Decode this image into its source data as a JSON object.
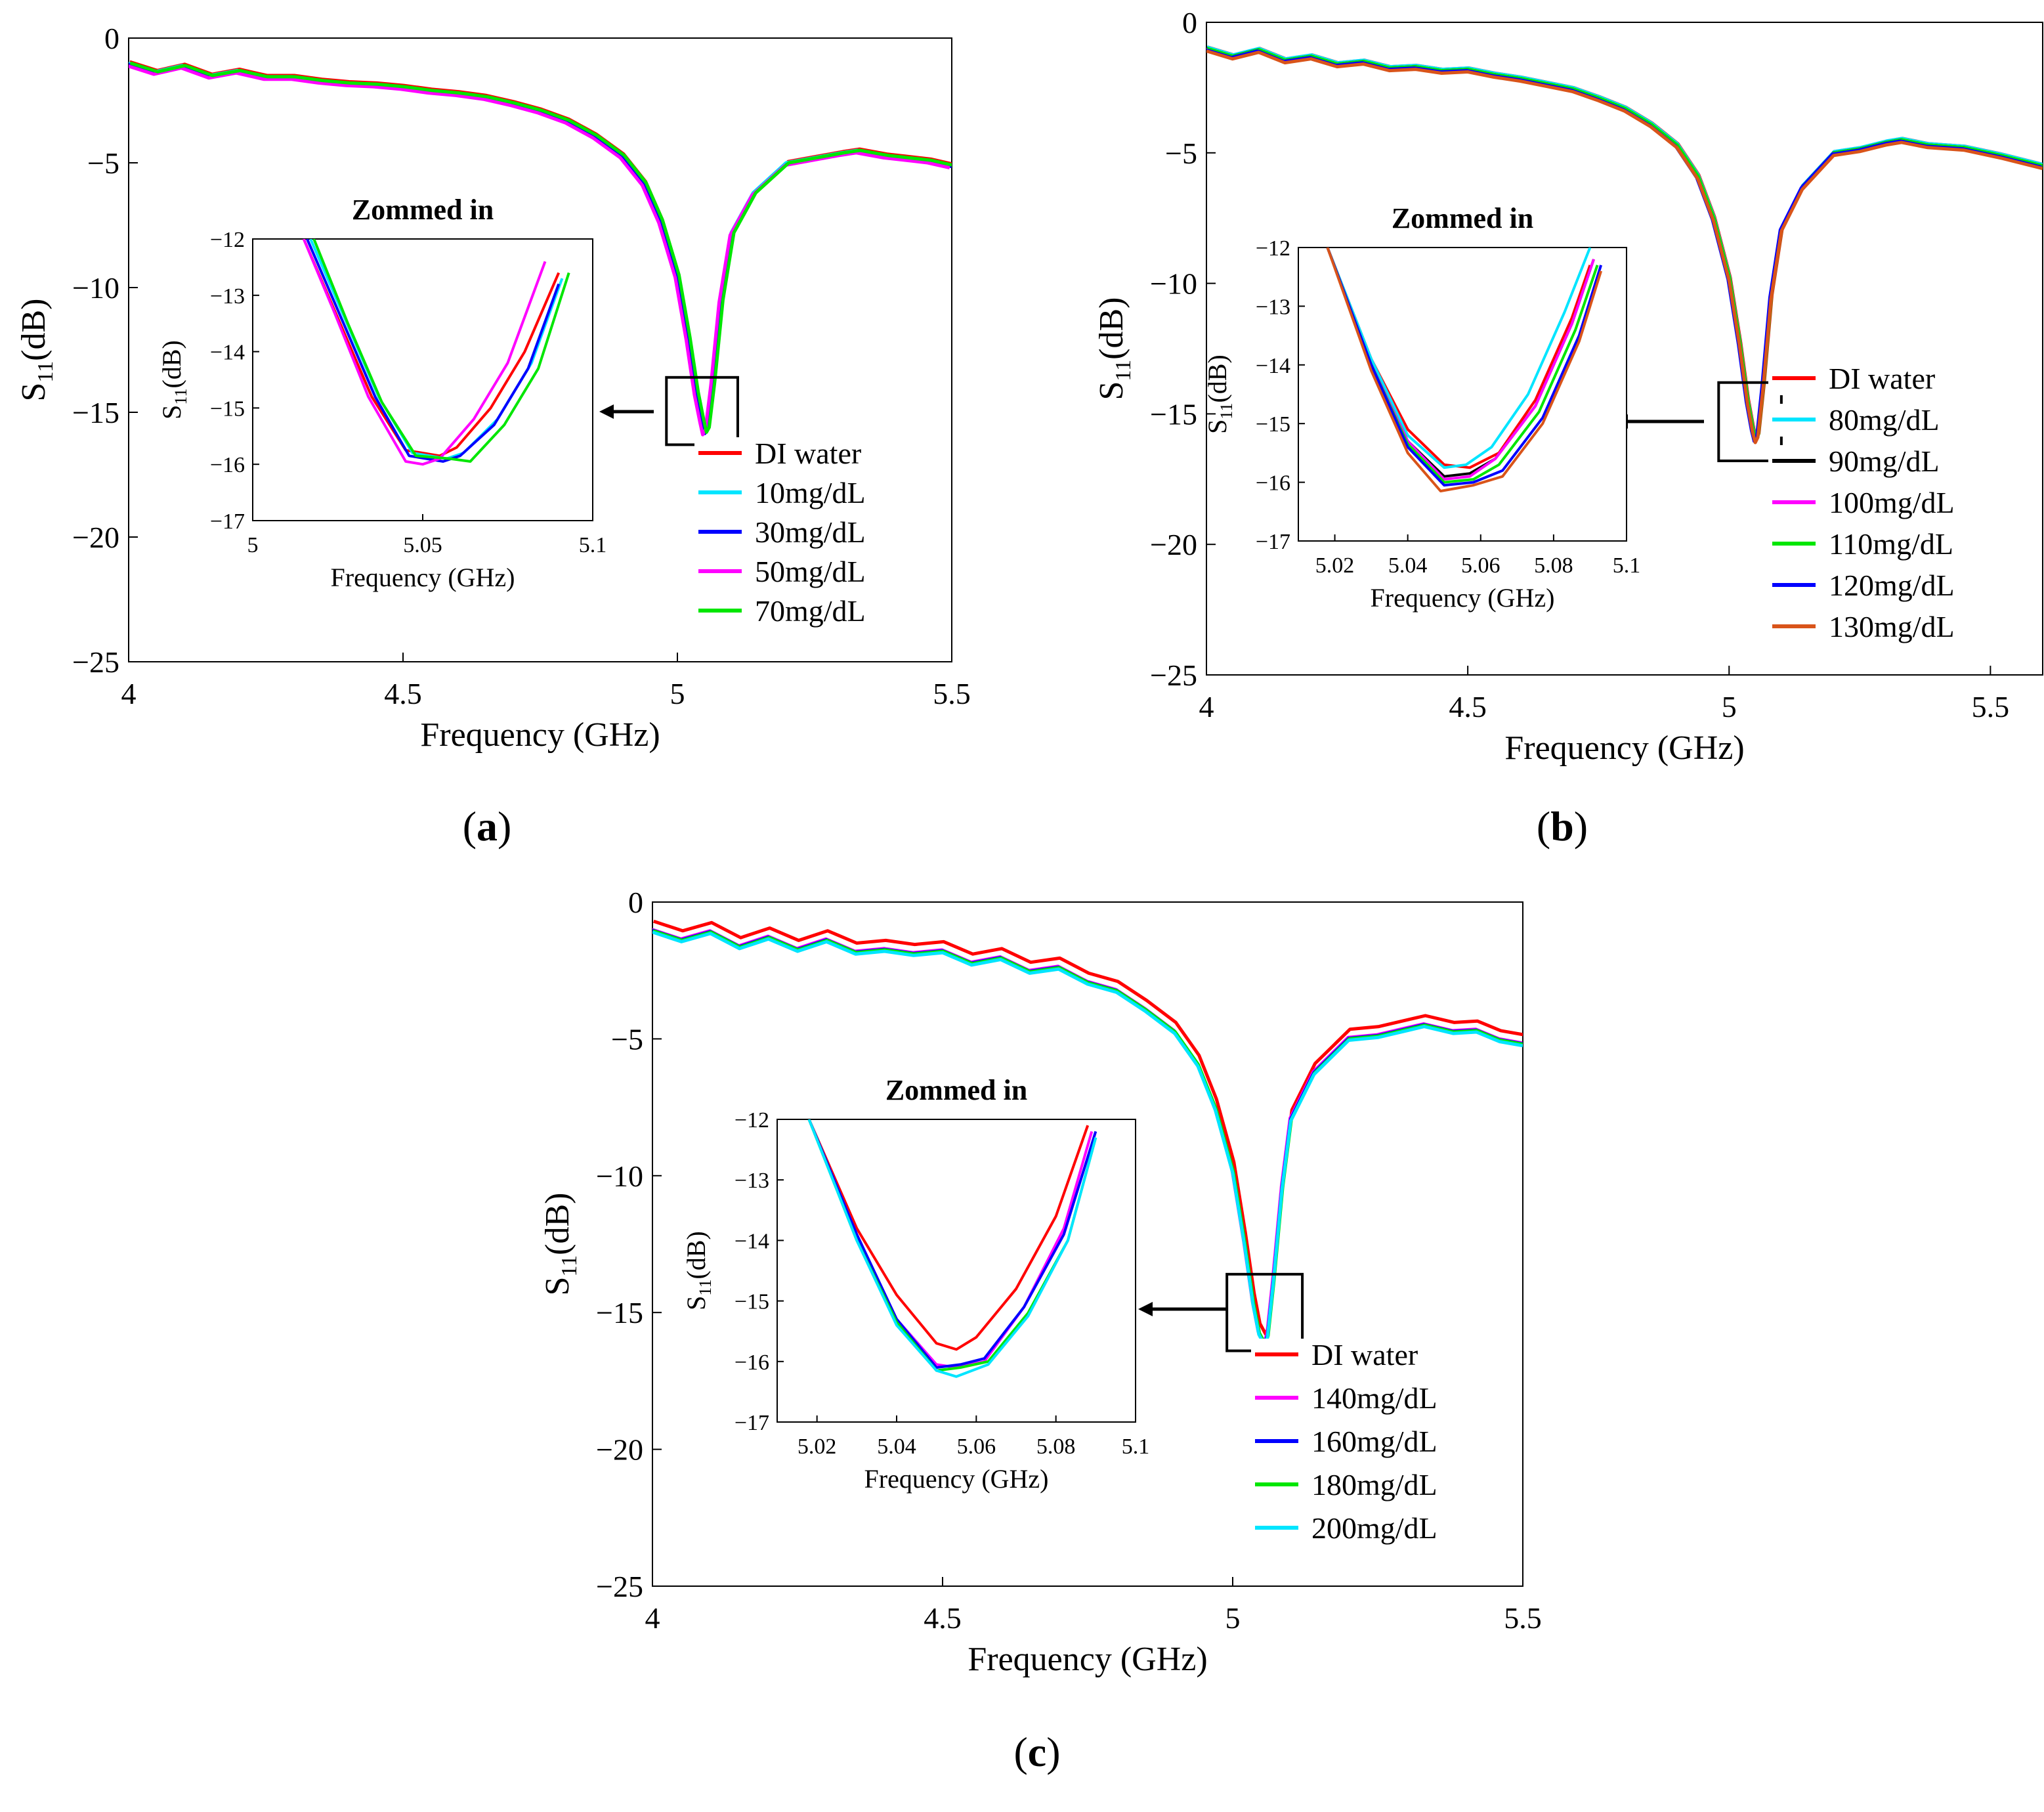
{
  "figure": {
    "panel_labels": [
      "(a)",
      "(b)",
      "(c)"
    ]
  },
  "colors": {
    "di_water": "#ff0000",
    "cyan": "#00e5ff",
    "black": "#000000",
    "magenta": "#ff00ff",
    "green": "#00e600",
    "blue": "#0000ff",
    "orange": "#d9541a"
  },
  "chart_data": [
    {
      "panel": "(a)",
      "type": "line",
      "xlabel": "Frequency (GHz)",
      "ylabel": "S11(dB)",
      "xlim": [
        4,
        5.5
      ],
      "ylim": [
        -25,
        0
      ],
      "xticks": [
        4,
        4.5,
        5,
        5.5
      ],
      "xtick_labels": [
        "4",
        "4.5",
        "5",
        "5.5"
      ],
      "yticks": [
        0,
        -5,
        -10,
        -15,
        -20,
        -25
      ],
      "ytick_labels": [
        "0",
        "-5",
        "-10",
        "-15",
        "-20",
        "-25"
      ],
      "zoom_box": {
        "x": [
          4.98,
          5.11
        ],
        "y": [
          -16.3,
          -13.6
        ]
      },
      "base_curve": {
        "x": [
          4.0,
          4.05,
          4.1,
          4.15,
          4.2,
          4.25,
          4.3,
          4.35,
          4.4,
          4.45,
          4.5,
          4.55,
          4.6,
          4.65,
          4.7,
          4.75,
          4.8,
          4.85,
          4.9,
          4.94,
          4.97,
          5.0,
          5.02,
          5.035,
          5.045,
          5.05,
          5.055,
          5.065,
          5.08,
          5.1,
          5.14,
          5.2,
          5.25,
          5.3,
          5.33,
          5.38,
          5.42,
          5.46,
          5.5
        ],
        "y": [
          -1.0,
          -1.35,
          -1.1,
          -1.5,
          -1.3,
          -1.55,
          -1.55,
          -1.7,
          -1.8,
          -1.85,
          -1.95,
          -2.1,
          -2.2,
          -2.35,
          -2.6,
          -2.9,
          -3.3,
          -3.9,
          -4.7,
          -5.8,
          -7.3,
          -9.5,
          -12.0,
          -14.2,
          -15.3,
          -15.8,
          -15.6,
          -13.8,
          -10.5,
          -7.8,
          -6.2,
          -5.0,
          -4.8,
          -4.6,
          -4.5,
          -4.7,
          -4.8,
          -4.9,
          -5.1
        ]
      },
      "series": [
        {
          "name": "DI water",
          "color": "#ff0000",
          "dx": 0.002,
          "dy": 0.05
        },
        {
          "name": "10mg/dL",
          "color": "#00e5ff",
          "dx": -0.002,
          "dy": 0.0
        },
        {
          "name": "30mg/dL",
          "color": "#0000ff",
          "dx": 0.0,
          "dy": -0.05
        },
        {
          "name": "50mg/dL",
          "color": "#ff00ff",
          "dx": -0.004,
          "dy": -0.1
        },
        {
          "name": "70mg/dL",
          "color": "#00e600",
          "dx": 0.003,
          "dy": 0.0
        }
      ],
      "inset": {
        "title": "Zommed in",
        "xlabel": "Frequency (GHz)",
        "ylabel": "S11(dB)",
        "xlim": [
          5.0,
          5.1
        ],
        "ylim": [
          -17,
          -12
        ],
        "xticks": [
          5.0,
          5.05,
          5.1
        ],
        "xtick_labels": [
          "5",
          "5.05",
          "5.1"
        ],
        "yticks": [
          -12,
          -13,
          -14,
          -15,
          -16,
          -17
        ],
        "ytick_labels": [
          "-12",
          "-13",
          "-14",
          "-15",
          "-16",
          "-17"
        ],
        "series": [
          {
            "name": "DI water",
            "x": [
              5.015,
              5.025,
              5.035,
              5.045,
              5.055,
              5.06,
              5.07,
              5.08,
              5.09
            ],
            "y": [
              -12.0,
              -13.4,
              -14.8,
              -15.75,
              -15.85,
              -15.7,
              -15.0,
              -14.0,
              -12.6
            ]
          },
          {
            "name": "10mg/dL",
            "x": [
              5.017,
              5.027,
              5.037,
              5.047,
              5.057,
              5.062,
              5.072,
              5.082,
              5.091
            ],
            "y": [
              -12.0,
              -13.4,
              -14.8,
              -15.8,
              -15.9,
              -15.8,
              -15.2,
              -14.2,
              -12.7
            ]
          },
          {
            "name": "30mg/dL",
            "x": [
              5.016,
              5.026,
              5.036,
              5.046,
              5.056,
              5.061,
              5.071,
              5.081,
              5.09
            ],
            "y": [
              -12.0,
              -13.4,
              -14.8,
              -15.85,
              -15.95,
              -15.85,
              -15.3,
              -14.3,
              -12.8
            ]
          },
          {
            "name": "50mg/dL",
            "x": [
              5.015,
              5.024,
              5.034,
              5.045,
              5.05,
              5.055,
              5.065,
              5.075,
              5.086
            ],
            "y": [
              -12.0,
              -13.3,
              -14.8,
              -15.95,
              -16.0,
              -15.9,
              -15.2,
              -14.2,
              -12.4
            ]
          },
          {
            "name": "70mg/dL",
            "x": [
              5.018,
              5.028,
              5.038,
              5.048,
              5.058,
              5.064,
              5.074,
              5.084,
              5.093
            ],
            "y": [
              -12.0,
              -13.5,
              -14.9,
              -15.85,
              -15.9,
              -15.95,
              -15.3,
              -14.3,
              -12.6
            ]
          }
        ]
      }
    },
    {
      "panel": "(b)",
      "type": "line",
      "xlabel": "Frequency (GHz)",
      "ylabel": "S11(dB)",
      "xlim": [
        4,
        5.6
      ],
      "ylim": [
        -25,
        0
      ],
      "xticks": [
        4,
        4.5,
        5,
        5.5
      ],
      "xtick_labels": [
        "4",
        "4.5",
        "5",
        "5.5"
      ],
      "yticks": [
        0,
        -5,
        -10,
        -15,
        -20,
        -25
      ],
      "ytick_labels": [
        "0",
        "-5",
        "-10",
        "-15",
        "-20",
        "-25"
      ],
      "zoom_box": {
        "x": [
          4.98,
          5.1
        ],
        "y": [
          -16.8,
          -13.8
        ]
      },
      "base_curve": {
        "x": [
          4.0,
          4.05,
          4.1,
          4.15,
          4.2,
          4.25,
          4.3,
          4.35,
          4.4,
          4.45,
          4.5,
          4.55,
          4.6,
          4.65,
          4.7,
          4.75,
          4.8,
          4.85,
          4.9,
          4.94,
          4.97,
          5.0,
          5.02,
          5.035,
          5.045,
          5.05,
          5.055,
          5.065,
          5.08,
          5.1,
          5.14,
          5.2,
          5.25,
          5.3,
          5.33,
          5.38,
          5.45,
          5.52,
          5.6
        ],
        "y": [
          -1.0,
          -1.3,
          -1.05,
          -1.45,
          -1.3,
          -1.6,
          -1.5,
          -1.75,
          -1.7,
          -1.85,
          -1.8,
          -2.0,
          -2.15,
          -2.35,
          -2.55,
          -2.9,
          -3.3,
          -3.9,
          -4.7,
          -5.9,
          -7.5,
          -9.8,
          -12.3,
          -14.5,
          -15.6,
          -16.0,
          -15.8,
          -13.9,
          -10.5,
          -7.9,
          -6.3,
          -5.0,
          -4.85,
          -4.6,
          -4.5,
          -4.7,
          -4.8,
          -5.1,
          -5.5
        ]
      },
      "series": [
        {
          "name": "DI water",
          "color": "#ff0000",
          "dx": 0.002,
          "dy": 0.05
        },
        {
          "name": "80mg/dL",
          "color": "#00e5ff",
          "dx": 0.001,
          "dy": 0.05
        },
        {
          "name": "90mg/dL",
          "color": "#000000",
          "dx": 0.0,
          "dy": 0.0
        },
        {
          "name": "100mg/dL",
          "color": "#ff00ff",
          "dx": -0.001,
          "dy": -0.03
        },
        {
          "name": "110mg/dL",
          "color": "#00e600",
          "dx": 0.001,
          "dy": 0.0
        },
        {
          "name": "120mg/dL",
          "color": "#0000ff",
          "dx": -0.002,
          "dy": -0.05
        },
        {
          "name": "130mg/dL",
          "color": "#d9541a",
          "dx": 0.0,
          "dy": -0.1
        }
      ],
      "inset": {
        "title": "Zommed in",
        "xlabel": "Frequency (GHz)",
        "ylabel": "S11(dB)",
        "xlim": [
          5.01,
          5.1
        ],
        "ylim": [
          -17,
          -12
        ],
        "xticks": [
          5.02,
          5.04,
          5.06,
          5.08,
          5.1
        ],
        "xtick_labels": [
          "5.02",
          "5.04",
          "5.06",
          "5.08",
          "5.1"
        ],
        "yticks": [
          -12,
          -13,
          -14,
          -15,
          -16,
          -17
        ],
        "ytick_labels": [
          "-12",
          "-13",
          "-14",
          "-15",
          "-16",
          "-17"
        ],
        "series": [
          {
            "name": "DI water",
            "x": [
              5.018,
              5.03,
              5.04,
              5.05,
              5.057,
              5.065,
              5.075,
              5.085,
              5.09
            ],
            "y": [
              -12.0,
              -13.9,
              -15.1,
              -15.7,
              -15.75,
              -15.5,
              -14.6,
              -13.2,
              -12.3
            ]
          },
          {
            "name": "80mg/dL",
            "x": [
              5.018,
              5.03,
              5.04,
              5.05,
              5.056,
              5.063,
              5.073,
              5.083,
              5.09
            ],
            "y": [
              -12.0,
              -13.9,
              -15.2,
              -15.75,
              -15.7,
              -15.4,
              -14.5,
              -13.1,
              -12.0
            ]
          },
          {
            "name": "90mg/dL",
            "x": [
              5.018,
              5.03,
              5.04,
              5.05,
              5.057,
              5.064,
              5.075,
              5.085,
              5.091
            ],
            "y": [
              -12.0,
              -14.0,
              -15.3,
              -15.9,
              -15.85,
              -15.6,
              -14.7,
              -13.3,
              -12.2
            ]
          },
          {
            "name": "100mg/dL",
            "x": [
              5.018,
              5.03,
              5.04,
              5.05,
              5.057,
              5.064,
              5.075,
              5.085,
              5.091
            ],
            "y": [
              -12.0,
              -14.0,
              -15.3,
              -15.95,
              -15.9,
              -15.6,
              -14.7,
              -13.3,
              -12.2
            ]
          },
          {
            "name": "110mg/dL",
            "x": [
              5.018,
              5.03,
              5.04,
              5.05,
              5.058,
              5.065,
              5.076,
              5.086,
              5.092
            ],
            "y": [
              -12.0,
              -14.0,
              -15.35,
              -16.0,
              -15.95,
              -15.7,
              -14.8,
              -13.4,
              -12.3
            ]
          },
          {
            "name": "120mg/dL",
            "x": [
              5.018,
              5.03,
              5.04,
              5.05,
              5.058,
              5.066,
              5.077,
              5.087,
              5.093
            ],
            "y": [
              -12.0,
              -14.0,
              -15.4,
              -16.05,
              -16.0,
              -15.8,
              -14.9,
              -13.5,
              -12.3
            ]
          },
          {
            "name": "130mg/dL",
            "x": [
              5.018,
              5.03,
              5.04,
              5.049,
              5.058,
              5.066,
              5.077,
              5.087,
              5.093
            ],
            "y": [
              -12.0,
              -14.1,
              -15.5,
              -16.15,
              -16.05,
              -15.9,
              -15.0,
              -13.6,
              -12.4
            ]
          }
        ]
      }
    },
    {
      "panel": "(c)",
      "type": "line",
      "xlabel": "Frequency (GHz)",
      "ylabel": "S11(dB)",
      "xlim": [
        4,
        5.5
      ],
      "ylim": [
        -25,
        0
      ],
      "xticks": [
        4,
        4.5,
        5,
        5.5
      ],
      "xtick_labels": [
        "4",
        "4.5",
        "5",
        "5.5"
      ],
      "yticks": [
        0,
        -5,
        -10,
        -15,
        -20,
        -25
      ],
      "ytick_labels": [
        "0",
        "-5",
        "-10",
        "-15",
        "-20",
        "-25"
      ],
      "zoom_box": {
        "x": [
          4.99,
          5.12
        ],
        "y": [
          -16.4,
          -13.6
        ]
      },
      "base_curve": {
        "x": [
          4.0,
          4.05,
          4.1,
          4.15,
          4.2,
          4.25,
          4.3,
          4.35,
          4.4,
          4.45,
          4.5,
          4.55,
          4.6,
          4.65,
          4.7,
          4.75,
          4.8,
          4.85,
          4.9,
          4.94,
          4.97,
          5.0,
          5.02,
          5.035,
          5.045,
          5.055,
          5.06,
          5.07,
          5.085,
          5.1,
          5.14,
          5.2,
          5.25,
          5.3,
          5.33,
          5.38,
          5.42,
          5.46,
          5.5
        ],
        "y": [
          -1.0,
          -1.35,
          -1.05,
          -1.6,
          -1.25,
          -1.7,
          -1.35,
          -1.8,
          -1.7,
          -1.85,
          -1.75,
          -2.2,
          -2.0,
          -2.5,
          -2.35,
          -2.9,
          -3.2,
          -3.9,
          -4.7,
          -5.9,
          -7.5,
          -9.8,
          -12.4,
          -14.6,
          -15.7,
          -16.1,
          -15.8,
          -13.8,
          -10.4,
          -7.9,
          -6.2,
          -4.95,
          -4.85,
          -4.6,
          -4.45,
          -4.7,
          -4.65,
          -5.0,
          -5.15
        ]
      },
      "series": [
        {
          "name": "DI water",
          "color": "#ff0000",
          "dx": 0.002,
          "dy": 0.3
        },
        {
          "name": "140mg/dL",
          "color": "#ff00ff",
          "dx": -0.001,
          "dy": 0.0
        },
        {
          "name": "160mg/dL",
          "color": "#0000ff",
          "dx": 0.0,
          "dy": -0.03
        },
        {
          "name": "180mg/dL",
          "color": "#00e600",
          "dx": 0.001,
          "dy": -0.05
        },
        {
          "name": "200mg/dL",
          "color": "#00e5ff",
          "dx": 0.0,
          "dy": -0.1
        }
      ],
      "inset": {
        "title": "Zommed in",
        "xlabel": "Frequency (GHz)",
        "ylabel": "S11(dB)",
        "xlim": [
          5.01,
          5.1
        ],
        "ylim": [
          -17,
          -12
        ],
        "xticks": [
          5.02,
          5.04,
          5.06,
          5.08,
          5.1
        ],
        "xtick_labels": [
          "5.02",
          "5.04",
          "5.06",
          "5.08",
          "5.1"
        ],
        "yticks": [
          -12,
          -13,
          -14,
          -15,
          -16,
          -17
        ],
        "ytick_labels": [
          "-12",
          "-13",
          "-14",
          "-15",
          "-16",
          "-17"
        ],
        "series": [
          {
            "name": "DI water",
            "x": [
              5.018,
              5.03,
              5.04,
              5.05,
              5.055,
              5.06,
              5.07,
              5.08,
              5.088
            ],
            "y": [
              -12.0,
              -13.8,
              -14.9,
              -15.7,
              -15.8,
              -15.6,
              -14.8,
              -13.6,
              -12.1
            ]
          },
          {
            "name": "140mg/dL",
            "x": [
              5.018,
              5.03,
              5.04,
              5.05,
              5.055,
              5.062,
              5.072,
              5.082,
              5.089
            ],
            "y": [
              -12.0,
              -13.9,
              -15.3,
              -16.05,
              -16.1,
              -16.0,
              -15.1,
              -13.8,
              -12.2
            ]
          },
          {
            "name": "160mg/dL",
            "x": [
              5.018,
              5.03,
              5.04,
              5.05,
              5.056,
              5.062,
              5.072,
              5.082,
              5.09
            ],
            "y": [
              -12.0,
              -13.9,
              -15.3,
              -16.1,
              -16.05,
              -15.95,
              -15.1,
              -13.9,
              -12.2
            ]
          },
          {
            "name": "180mg/dL",
            "x": [
              5.018,
              5.03,
              5.04,
              5.05,
              5.056,
              5.063,
              5.073,
              5.083,
              5.09
            ],
            "y": [
              -12.0,
              -14.0,
              -15.35,
              -16.15,
              -16.1,
              -16.0,
              -15.2,
              -14.0,
              -12.3
            ]
          },
          {
            "name": "200mg/dL",
            "x": [
              5.018,
              5.03,
              5.04,
              5.05,
              5.055,
              5.063,
              5.073,
              5.083,
              5.09
            ],
            "y": [
              -12.0,
              -14.0,
              -15.4,
              -16.15,
              -16.25,
              -16.05,
              -15.25,
              -14.0,
              -12.3
            ]
          }
        ]
      }
    }
  ]
}
